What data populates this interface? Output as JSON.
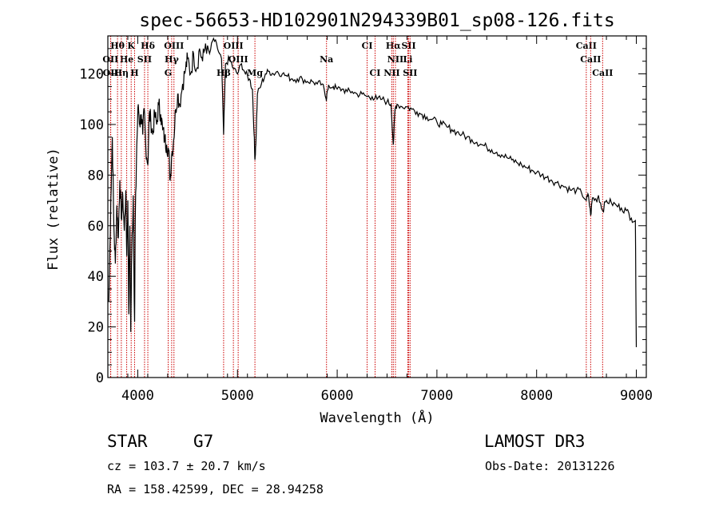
{
  "chart_data": {
    "type": "line",
    "title": "spec-56653-HD102901N294339B01_sp08-126.fits",
    "xlabel": "Wavelength (Å)",
    "ylabel": "Flux (relative)",
    "xlim": [
      3700,
      9100
    ],
    "ylim": [
      0,
      135
    ],
    "x_ticks": [
      4000,
      5000,
      6000,
      7000,
      8000,
      9000
    ],
    "y_ticks": [
      0,
      20,
      40,
      60,
      80,
      100,
      120
    ],
    "grid": false,
    "series": [
      {
        "name": "spectrum",
        "points": [
          [
            3710,
            30
          ],
          [
            3730,
            70
          ],
          [
            3745,
            95
          ],
          [
            3760,
            60
          ],
          [
            3775,
            45
          ],
          [
            3790,
            68
          ],
          [
            3805,
            55
          ],
          [
            3820,
            78
          ],
          [
            3835,
            63
          ],
          [
            3850,
            72
          ],
          [
            3865,
            58
          ],
          [
            3880,
            74
          ],
          [
            3890,
            48
          ],
          [
            3900,
            70
          ],
          [
            3910,
            25
          ],
          [
            3920,
            60
          ],
          [
            3930,
            18
          ],
          [
            3940,
            50
          ],
          [
            3955,
            72
          ],
          [
            3968,
            22
          ],
          [
            3975,
            62
          ],
          [
            3990,
            92
          ],
          [
            4005,
            108
          ],
          [
            4020,
            100
          ],
          [
            4035,
            104
          ],
          [
            4050,
            96
          ],
          [
            4065,
            106
          ],
          [
            4080,
            92
          ],
          [
            4101,
            84
          ],
          [
            4115,
            104
          ],
          [
            4130,
            102
          ],
          [
            4150,
            96
          ],
          [
            4170,
            104
          ],
          [
            4190,
            100
          ],
          [
            4210,
            108
          ],
          [
            4230,
            104
          ],
          [
            4250,
            98
          ],
          [
            4270,
            94
          ],
          [
            4290,
            92
          ],
          [
            4310,
            90
          ],
          [
            4325,
            78
          ],
          [
            4340,
            88
          ],
          [
            4360,
            94
          ],
          [
            4380,
            106
          ],
          [
            4400,
            112
          ],
          [
            4420,
            108
          ],
          [
            4450,
            116
          ],
          [
            4480,
            122
          ],
          [
            4500,
            126
          ],
          [
            4530,
            120
          ],
          [
            4560,
            128
          ],
          [
            4590,
            122
          ],
          [
            4620,
            130
          ],
          [
            4650,
            125
          ],
          [
            4680,
            132
          ],
          [
            4720,
            128
          ],
          [
            4760,
            134
          ],
          [
            4800,
            130
          ],
          [
            4840,
            126
          ],
          [
            4861,
            96
          ],
          [
            4880,
            124
          ],
          [
            4920,
            126
          ],
          [
            4960,
            122
          ],
          [
            5000,
            120
          ],
          [
            5040,
            124
          ],
          [
            5080,
            120
          ],
          [
            5120,
            118
          ],
          [
            5150,
            114
          ],
          [
            5167,
            96
          ],
          [
            5175,
            86
          ],
          [
            5184,
            92
          ],
          [
            5200,
            112
          ],
          [
            5240,
            116
          ],
          [
            5280,
            120
          ],
          [
            5320,
            121
          ],
          [
            5360,
            120
          ],
          [
            5400,
            121
          ],
          [
            5450,
            120
          ],
          [
            5500,
            119
          ],
          [
            5550,
            118
          ],
          [
            5600,
            118
          ],
          [
            5650,
            118
          ],
          [
            5700,
            117
          ],
          [
            5750,
            117
          ],
          [
            5800,
            116
          ],
          [
            5850,
            116
          ],
          [
            5890,
            110
          ],
          [
            5896,
            112
          ],
          [
            5920,
            115
          ],
          [
            5960,
            115
          ],
          [
            6000,
            114
          ],
          [
            6050,
            114
          ],
          [
            6100,
            113
          ],
          [
            6150,
            113
          ],
          [
            6200,
            112
          ],
          [
            6250,
            112
          ],
          [
            6300,
            111
          ],
          [
            6350,
            111
          ],
          [
            6400,
            110
          ],
          [
            6450,
            110
          ],
          [
            6500,
            109
          ],
          [
            6540,
            108
          ],
          [
            6563,
            92
          ],
          [
            6580,
            106
          ],
          [
            6600,
            108
          ],
          [
            6650,
            107
          ],
          [
            6700,
            107
          ],
          [
            6750,
            106
          ],
          [
            6800,
            105
          ],
          [
            6850,
            104
          ],
          [
            6900,
            103
          ],
          [
            6950,
            102
          ],
          [
            7000,
            101
          ],
          [
            7050,
            100
          ],
          [
            7100,
            99
          ],
          [
            7150,
            98
          ],
          [
            7200,
            97
          ],
          [
            7250,
            96
          ],
          [
            7300,
            95
          ],
          [
            7350,
            94
          ],
          [
            7400,
            93
          ],
          [
            7450,
            92
          ],
          [
            7500,
            91
          ],
          [
            7550,
            90
          ],
          [
            7600,
            89
          ],
          [
            7650,
            88
          ],
          [
            7700,
            87
          ],
          [
            7750,
            86
          ],
          [
            7800,
            85
          ],
          [
            7850,
            84
          ],
          [
            7900,
            83
          ],
          [
            7950,
            82
          ],
          [
            8000,
            81
          ],
          [
            8050,
            80
          ],
          [
            8100,
            79
          ],
          [
            8150,
            78
          ],
          [
            8200,
            77
          ],
          [
            8250,
            76
          ],
          [
            8300,
            75
          ],
          [
            8350,
            74
          ],
          [
            8400,
            74
          ],
          [
            8450,
            73
          ],
          [
            8498,
            70
          ],
          [
            8520,
            72
          ],
          [
            8542,
            64
          ],
          [
            8560,
            71
          ],
          [
            8600,
            70
          ],
          [
            8620,
            72
          ],
          [
            8662,
            66
          ],
          [
            8700,
            70
          ],
          [
            8750,
            69
          ],
          [
            8800,
            68
          ],
          [
            8850,
            67
          ],
          [
            8900,
            66
          ],
          [
            8950,
            63
          ],
          [
            8990,
            62
          ],
          [
            9000,
            12
          ]
        ]
      }
    ],
    "spectral_lines": [
      {
        "label": "Hθ",
        "wavelength": 3797,
        "row": 0
      },
      {
        "label": "K",
        "wavelength": 3934,
        "row": 0
      },
      {
        "label": "Hδ",
        "wavelength": 4101,
        "row": 0
      },
      {
        "label": "OIII",
        "wavelength": 4363,
        "row": 0
      },
      {
        "label": "OIII",
        "wavelength": 4959,
        "row": 0
      },
      {
        "label": "CI",
        "wavelength": 6300,
        "row": 0
      },
      {
        "label": "Hα",
        "wavelength": 6563,
        "row": 0
      },
      {
        "label": "SII",
        "wavelength": 6717,
        "row": 0
      },
      {
        "label": "CaII",
        "wavelength": 8498,
        "row": 0
      },
      {
        "label": "OII",
        "wavelength": 3727,
        "row": 1
      },
      {
        "label": "He",
        "wavelength": 3889,
        "row": 1
      },
      {
        "label": "SII",
        "wavelength": 4068,
        "row": 1
      },
      {
        "label": "Hγ",
        "wavelength": 4340,
        "row": 1
      },
      {
        "label": "OIII",
        "wavelength": 5007,
        "row": 1
      },
      {
        "label": "Na",
        "wavelength": 5893,
        "row": 1
      },
      {
        "label": "NII",
        "wavelength": 6584,
        "row": 1
      },
      {
        "label": "Li",
        "wavelength": 6708,
        "row": 1
      },
      {
        "label": "CaII",
        "wavelength": 8542,
        "row": 1
      },
      {
        "label": "OII",
        "wavelength": 3729,
        "row": 2
      },
      {
        "label": "Hη",
        "wavelength": 3835,
        "row": 2
      },
      {
        "label": "H",
        "wavelength": 3968,
        "row": 2
      },
      {
        "label": "G",
        "wavelength": 4305,
        "row": 2
      },
      {
        "label": "Hβ",
        "wavelength": 4861,
        "row": 2
      },
      {
        "label": "Mg",
        "wavelength": 5175,
        "row": 2
      },
      {
        "label": "CI",
        "wavelength": 6380,
        "row": 2
      },
      {
        "label": "NII",
        "wavelength": 6548,
        "row": 2
      },
      {
        "label": "SII",
        "wavelength": 6731,
        "row": 2
      },
      {
        "label": "CaII",
        "wavelength": 8662,
        "row": 2
      }
    ]
  },
  "info": {
    "object_type": "STAR",
    "subclass": "G7",
    "survey": "LAMOST DR3",
    "redshift": "cz = 103.7 ± 20.7 km/s",
    "obs_date": "Obs-Date: 20131226",
    "coords": "RA = 158.42599, DEC =  28.94258"
  },
  "colors": {
    "spectrum": "#000000",
    "line_marker": "#cc0000",
    "axis": "#000000"
  }
}
